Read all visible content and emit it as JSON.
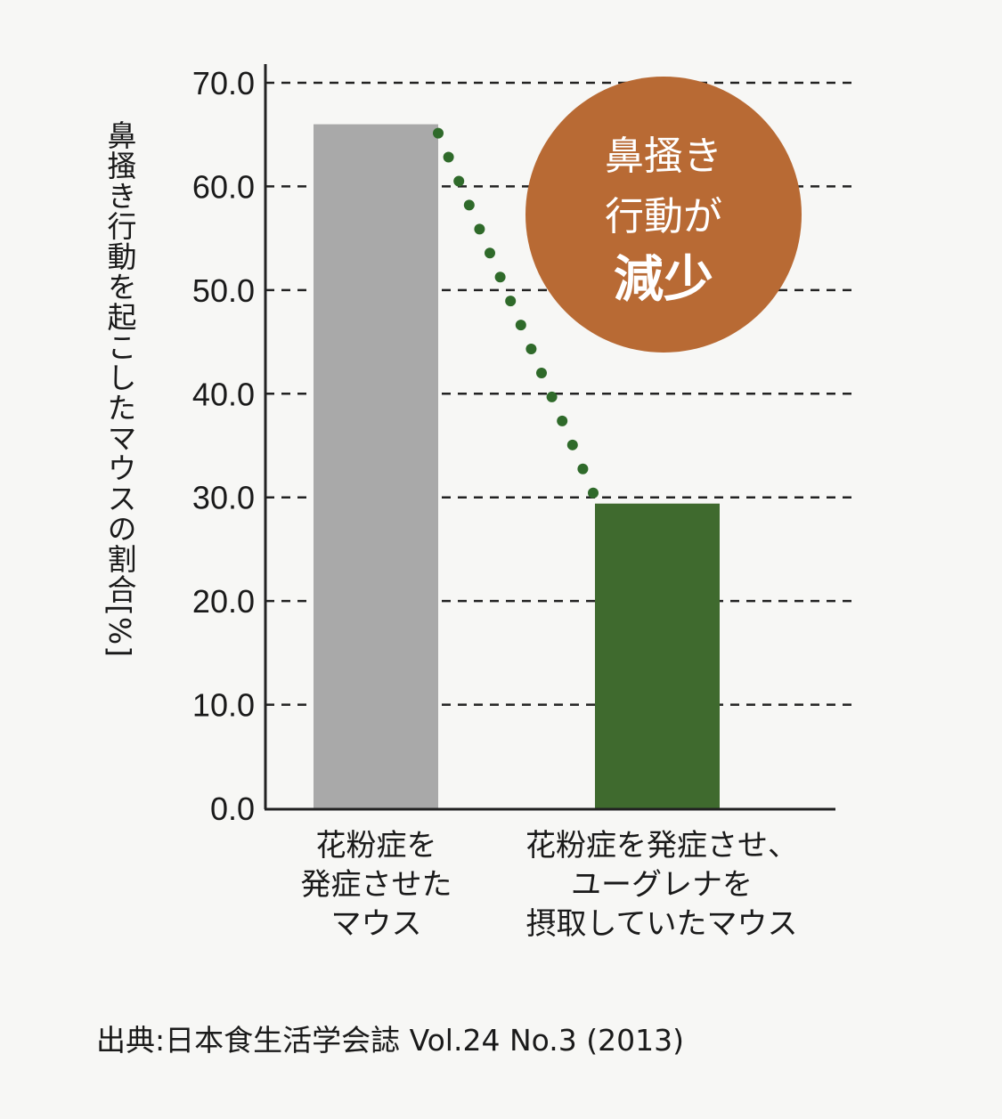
{
  "chart_data": {
    "type": "bar",
    "title": "",
    "ylabel": "鼻搔き行動を起こしたマウスの割合[%]",
    "xlabel": "",
    "categories": [
      "花粉症を発症させたマウス",
      "花粉症を発症させ、ユーグレナを摂取していたマウス"
    ],
    "values": [
      66.0,
      29.4
    ],
    "bar_colors": [
      "#a9a9a9",
      "#3f6a2e"
    ],
    "ylim": [
      0,
      70
    ],
    "yticks": [
      0.0,
      10.0,
      20.0,
      30.0,
      40.0,
      50.0,
      60.0,
      70.0
    ],
    "ytick_labels": [
      "0.0",
      "10.0",
      "20.0",
      "30.0",
      "40.0",
      "50.0",
      "60.0",
      "70.0"
    ],
    "grid": "horizontal dashed",
    "annotations": [
      {
        "type": "dotted-line",
        "from_bar": 0,
        "to_bar": 1,
        "color": "#2f6a2a"
      },
      {
        "type": "circle-badge",
        "text": "鼻搔き行動が減少",
        "color": "#b86a34"
      }
    ]
  },
  "yaxis": {
    "label": "鼻搔き行動を起こしたマウスの割合[%]"
  },
  "categories_display": [
    "花粉症を\n発症させた\nマウス",
    "花粉症を発症させ、\nユーグレナを\n摂取していたマウス"
  ],
  "badge": {
    "line1": "鼻搔き",
    "line2": "行動が",
    "line3": "減少",
    "color": "#b86a34"
  },
  "source": "出典:日本食生活学会誌 Vol.24 No.3 (2013)"
}
